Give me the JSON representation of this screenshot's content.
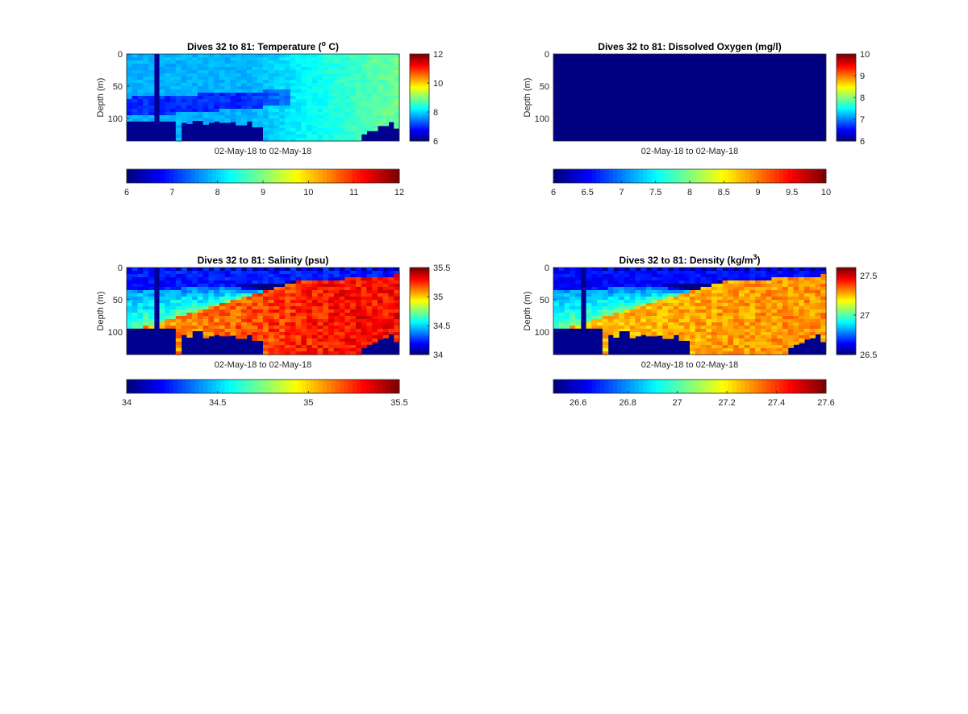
{
  "figure": {
    "background": "#ffffff",
    "colormap": "jet",
    "no_data_color": "#00008f"
  },
  "chart_data": [
    {
      "type": "heatmap",
      "id": "temperature",
      "title_parts": [
        "Dives 32 to 81: Temperature (",
        "o",
        " C)"
      ],
      "title_sup_index": 1,
      "ylabel": "Depth (m)",
      "xlabel": "02-May-18 to 02-May-18",
      "ylim": [
        0,
        135
      ],
      "ytick_values": [
        0,
        50,
        100
      ],
      "ytick_labels": [
        "0",
        "50",
        "100"
      ],
      "clim": [
        6,
        12
      ],
      "side_colorbar_ticks": [
        6,
        8,
        10,
        12
      ],
      "side_colorbar_labels": [
        "6",
        "8",
        "10",
        "12"
      ],
      "bottom_colorbar_ticks": [
        6,
        7,
        8,
        9,
        10,
        11,
        12
      ],
      "bottom_colorbar_labels": [
        "6",
        "7",
        "8",
        "9",
        "10",
        "11",
        "12"
      ],
      "n_dives": 50,
      "dive_max_depth": [
        104,
        104,
        104,
        104,
        104,
        104,
        104,
        104,
        104,
        135,
        106,
        108,
        103,
        103,
        109,
        106,
        104,
        106,
        106,
        105,
        110,
        110,
        104,
        113,
        113,
        135,
        135,
        135,
        135,
        135,
        135,
        135,
        135,
        135,
        135,
        135,
        135,
        135,
        135,
        135,
        135,
        135,
        135,
        124,
        119,
        119,
        111,
        111,
        105,
        115
      ],
      "missing_dive_indices": [
        5
      ],
      "surface_value_gap_mod": 0,
      "layers": {
        "mode": "temperature",
        "surface_value": 7.8,
        "deep_value_west": 7.0,
        "deep_value_east": 8.5,
        "warm_east_value": 8.9
      }
    },
    {
      "type": "heatmap",
      "id": "oxygen",
      "title_parts": [
        "Dives 32 to 81: Dissolved Oxygen (mg/l)"
      ],
      "title_sup_index": -1,
      "ylabel": "Depth (m)",
      "xlabel": "02-May-18 to 02-May-18",
      "ylim": [
        0,
        135
      ],
      "ytick_values": [
        0,
        50,
        100
      ],
      "ytick_labels": [
        "0",
        "50",
        "100"
      ],
      "clim": [
        6,
        10
      ],
      "side_colorbar_ticks": [
        6,
        7,
        8,
        9,
        10
      ],
      "side_colorbar_labels": [
        "6",
        "7",
        "8",
        "9",
        "10"
      ],
      "bottom_colorbar_ticks": [
        6,
        6.5,
        7,
        7.5,
        8,
        8.5,
        9,
        9.5,
        10
      ],
      "bottom_colorbar_labels": [
        "6",
        "6.5",
        "7",
        "7.5",
        "8",
        "8.5",
        "9",
        "9.5",
        "10"
      ],
      "n_dives": 50,
      "dive_max_depth": [],
      "missing_dive_indices": [],
      "surface_value_gap_mod": 0,
      "layers": {
        "mode": "constant",
        "value": 5.5
      }
    },
    {
      "type": "heatmap",
      "id": "salinity",
      "title_parts": [
        "Dives 32 to 81: Salinity (psu)"
      ],
      "title_sup_index": -1,
      "ylabel": "Depth (m)",
      "xlabel": "02-May-18 to 02-May-18",
      "ylim": [
        0,
        135
      ],
      "ytick_values": [
        0,
        50,
        100
      ],
      "ytick_labels": [
        "0",
        "50",
        "100"
      ],
      "clim": [
        34,
        35.5
      ],
      "side_colorbar_ticks": [
        34,
        34.5,
        35,
        35.5
      ],
      "side_colorbar_labels": [
        "34",
        "34.5",
        "35",
        "35.5"
      ],
      "bottom_colorbar_ticks": [
        34,
        34.5,
        35,
        35.5
      ],
      "bottom_colorbar_labels": [
        "34",
        "34.5",
        "35",
        "35.5"
      ],
      "n_dives": 50,
      "dive_max_depth": [
        94,
        94,
        94,
        94,
        94,
        94,
        94,
        94,
        94,
        135,
        104,
        108,
        98,
        98,
        109,
        106,
        104,
        106,
        106,
        105,
        110,
        110,
        104,
        113,
        113,
        135,
        135,
        135,
        135,
        135,
        135,
        135,
        135,
        135,
        135,
        135,
        135,
        135,
        135,
        135,
        135,
        135,
        135,
        124,
        119,
        117,
        111,
        109,
        103,
        115
      ],
      "missing_dive_indices": [
        5
      ],
      "surface_value_gap_mod": 2,
      "layers": {
        "mode": "stratified",
        "surface_value": 34.15,
        "mid_value_west": 34.6,
        "deep_value_west": 35.05,
        "deep_value_east": 35.3
      }
    },
    {
      "type": "heatmap",
      "id": "density",
      "title_parts": [
        "Dives 32 to 81: Density (kg/m",
        "3",
        ")"
      ],
      "title_sup_index": 1,
      "ylabel": "Depth (m)",
      "xlabel": "02-May-18 to 02-May-18",
      "ylim": [
        0,
        135
      ],
      "ytick_values": [
        0,
        50,
        100
      ],
      "ytick_labels": [
        "0",
        "50",
        "100"
      ],
      "clim": [
        26.5,
        27.6
      ],
      "side_colorbar_ticks": [
        26.5,
        27,
        27.5
      ],
      "side_colorbar_labels": [
        "26.5",
        "27",
        "27.5"
      ],
      "bottom_colorbar_ticks": [
        26.6,
        26.8,
        27,
        27.2,
        27.4,
        27.6
      ],
      "bottom_colorbar_labels": [
        "26.6",
        "26.8",
        "27",
        "27.2",
        "27.4",
        "27.6"
      ],
      "n_dives": 50,
      "dive_max_depth": [
        94,
        94,
        94,
        94,
        94,
        94,
        94,
        94,
        94,
        135,
        104,
        108,
        98,
        98,
        109,
        106,
        104,
        106,
        106,
        105,
        110,
        110,
        104,
        113,
        113,
        135,
        135,
        135,
        135,
        135,
        135,
        135,
        135,
        135,
        135,
        135,
        135,
        135,
        135,
        135,
        135,
        135,
        135,
        124,
        119,
        117,
        111,
        109,
        103,
        115
      ],
      "missing_dive_indices": [
        5
      ],
      "surface_value_gap_mod": 2,
      "layers": {
        "mode": "stratified",
        "surface_value": 26.6,
        "mid_value_west": 26.95,
        "deep_value_west": 27.25,
        "deep_value_east": 27.3
      }
    }
  ]
}
